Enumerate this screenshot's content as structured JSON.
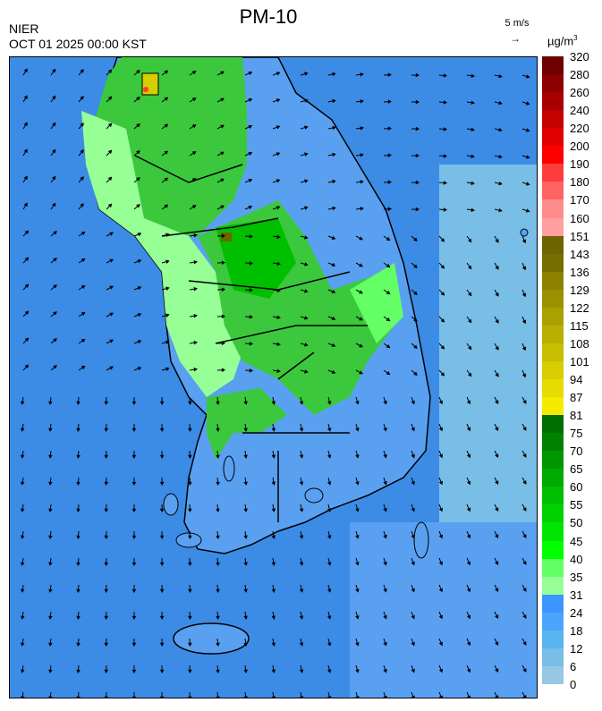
{
  "header": {
    "title": "PM-10",
    "agency": "NIER",
    "datetime": "OCT 01 2025 00:00 KST",
    "wind_scale_label": "5 m/s",
    "wind_scale_arrow": "→",
    "unit_base": "µg/m",
    "unit_exp": "3"
  },
  "legend": {
    "labels": [
      "320",
      "280",
      "260",
      "240",
      "220",
      "200",
      "190",
      "180",
      "170",
      "160",
      "151",
      "143",
      "136",
      "129",
      "122",
      "115",
      "108",
      "101",
      "94",
      "87",
      "81",
      "75",
      "70",
      "65",
      "60",
      "55",
      "50",
      "45",
      "40",
      "35",
      "31",
      "24",
      "18",
      "12",
      "6",
      "0"
    ],
    "colors": [
      "#6e0000",
      "#8c0000",
      "#a80000",
      "#c40000",
      "#e00000",
      "#ff0000",
      "#ff3c3c",
      "#ff6464",
      "#ff8c8c",
      "#ffa0a0",
      "#6e6400",
      "#786e00",
      "#8c8200",
      "#9b9100",
      "#aaa000",
      "#b9af00",
      "#c8be00",
      "#d7cd00",
      "#e6dc00",
      "#f5eb00",
      "#006e00",
      "#008200",
      "#009600",
      "#00aa00",
      "#00be00",
      "#00d200",
      "#00e600",
      "#00ff00",
      "#64ff64",
      "#96ff96",
      "#3c96ff",
      "#4ba5ff",
      "#5ab4f0",
      "#78bee6",
      "#96c8e6"
    ]
  },
  "map": {
    "sea_color": "#3c8ce6",
    "land_low_color": "#5aa0f0",
    "land_green_color": "#3cc83c",
    "land_light_green_color": "#96ff96",
    "hotspot_color": "#d7cd00",
    "coast_color": "#000000"
  }
}
